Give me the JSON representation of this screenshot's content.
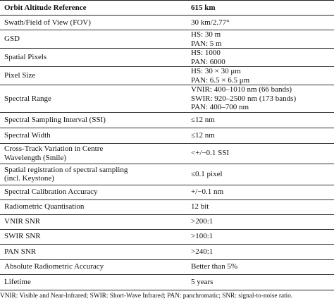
{
  "table": {
    "header": {
      "parameter": "Orbit Altitude Reference",
      "value": "615 km"
    },
    "rows": [
      {
        "parameter": [
          "Swath/Field of View (FOV)"
        ],
        "value": [
          "30 km/2.77°"
        ]
      },
      {
        "parameter": [
          "GSD"
        ],
        "value": [
          "HS: 30 m",
          "PAN: 5 m"
        ]
      },
      {
        "parameter": [
          "Spatial Pixels"
        ],
        "value": [
          "HS: 1000",
          "PAN: 6000"
        ]
      },
      {
        "parameter": [
          "Pixel Size"
        ],
        "value": [
          "HS: 30 × 30 μm",
          "PAN: 6.5 × 6.5 μm"
        ]
      },
      {
        "parameter": [
          "Spectral Range"
        ],
        "value": [
          "VNIR: 400–1010 nm (66 bands)",
          "SWIR: 920–2500 nm (173 bands)",
          "PAN: 400–700 nm"
        ]
      },
      {
        "parameter": [
          "Spectral Sampling Interval (SSI)"
        ],
        "value": [
          "≤12 nm"
        ]
      },
      {
        "parameter": [
          "Spectral Width"
        ],
        "value": [
          "≤12 nm"
        ]
      },
      {
        "parameter": [
          "Cross-Track Variation in Centre",
          "Wavelength (Smile)"
        ],
        "value": [
          "<+/−0.1 SSI"
        ]
      },
      {
        "parameter": [
          "Spatial registration of spectral sampling",
          "(incl. Keystone)"
        ],
        "value": [
          "≤0.1 pixel"
        ]
      },
      {
        "parameter": [
          "Spectral Calibration Accuracy"
        ],
        "value": [
          "+/−0.1 nm"
        ]
      },
      {
        "parameter": [
          "Radiometric Quantisation"
        ],
        "value": [
          "12 bit"
        ]
      },
      {
        "parameter": [
          "VNIR SNR"
        ],
        "value": [
          ">200:1"
        ]
      },
      {
        "parameter": [
          "SWIR SNR"
        ],
        "value": [
          ">100:1"
        ]
      },
      {
        "parameter": [
          "PAN SNR"
        ],
        "value": [
          ">240:1"
        ]
      },
      {
        "parameter": [
          "Absolute Radiometric Accuracy"
        ],
        "value": [
          "Better than 5%"
        ]
      },
      {
        "parameter": [
          "Lifetime"
        ],
        "value": [
          "5 years"
        ]
      }
    ]
  },
  "footnote": "VNIR: Visible and Near-Infrared; SWIR: Short-Wave Infrared; PAN: panchromatic; SNR: signal-to-noise ratio."
}
